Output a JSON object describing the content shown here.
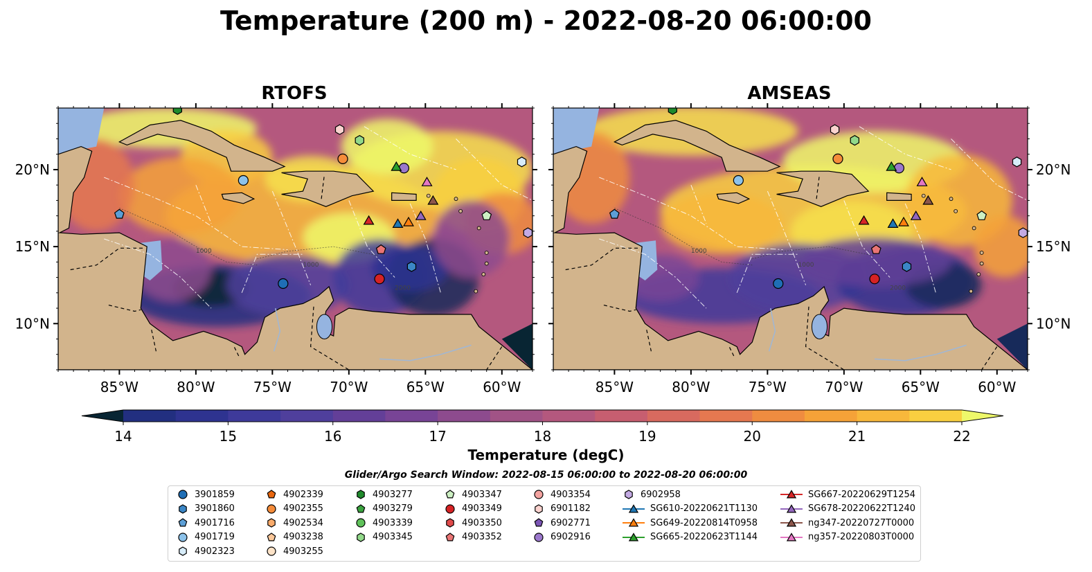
{
  "title": "Temperature (200 m) - 2022-08-20 06:00:00",
  "panels": [
    {
      "title": "RTOFS"
    },
    {
      "title": "AMSEAS"
    }
  ],
  "lon_ticks": [
    "85°W",
    "80°W",
    "75°W",
    "70°W",
    "65°W",
    "60°W"
  ],
  "lat_ticks": [
    "20°N",
    "15°N",
    "10°N"
  ],
  "colorbar": {
    "label": "Temperature (degC)",
    "ticks": [
      "14",
      "15",
      "16",
      "17",
      "18",
      "19",
      "20",
      "21",
      "22"
    ],
    "colors": [
      "#082533",
      "#172a5a",
      "#222f80",
      "#2e3390",
      "#3e3a9a",
      "#4f3f9c",
      "#633f98",
      "#784496",
      "#8d4b8e",
      "#a15386",
      "#b4587e",
      "#c75e70",
      "#d86a5f",
      "#e57850",
      "#ef8c40",
      "#f5a238",
      "#f8b83b",
      "#f9cf40",
      "#f6e04c",
      "#eef86a"
    ]
  },
  "contour_labels": [
    "1000",
    "2000",
    "1000"
  ],
  "legend": {
    "title": "Glider/Argo Search Window: 2022-08-15 06:00:00 to 2022-08-20 06:00:00",
    "items": [
      {
        "label": "3901859",
        "marker": "circle",
        "color": "#1f6eb5"
      },
      {
        "label": "3901860",
        "marker": "hexagon",
        "color": "#3b86c6"
      },
      {
        "label": "4901716",
        "marker": "pentagon",
        "color": "#5c9fd6"
      },
      {
        "label": "4901719",
        "marker": "circle",
        "color": "#8cc2ea"
      },
      {
        "label": "4902323",
        "marker": "hexagon",
        "color": "#d7ecf9"
      },
      {
        "label": "4902339",
        "marker": "pentagon",
        "color": "#e8660e"
      },
      {
        "label": "4902355",
        "marker": "circle",
        "color": "#f58c3a"
      },
      {
        "label": "4902534",
        "marker": "hexagon",
        "color": "#f9ab6b"
      },
      {
        "label": "4903238",
        "marker": "pentagon",
        "color": "#fcc89a"
      },
      {
        "label": "4903255",
        "marker": "circle",
        "color": "#fde3c8"
      },
      {
        "label": "4903277",
        "marker": "hexagon",
        "color": "#1f8a2c"
      },
      {
        "label": "4903279",
        "marker": "pentagon",
        "color": "#3ba33f"
      },
      {
        "label": "4903339",
        "marker": "circle",
        "color": "#5fc15a"
      },
      {
        "label": "4903345",
        "marker": "hexagon",
        "color": "#92d98a"
      },
      {
        "label": "4903347",
        "marker": "pentagon",
        "color": "#cdf0c3"
      },
      {
        "label": "4903349",
        "marker": "circle",
        "color": "#d62224"
      },
      {
        "label": "4903350",
        "marker": "hexagon",
        "color": "#e04a4a"
      },
      {
        "label": "4903352",
        "marker": "pentagon",
        "color": "#ea7575"
      },
      {
        "label": "4903354",
        "marker": "circle",
        "color": "#f3a3a0"
      },
      {
        "label": "6901182",
        "marker": "hexagon",
        "color": "#fbd3cf"
      },
      {
        "label": "6902771",
        "marker": "pentagon",
        "color": "#7b55b5"
      },
      {
        "label": "6902916",
        "marker": "circle",
        "color": "#9b78cc"
      },
      {
        "label": "6902958",
        "marker": "hexagon",
        "color": "#c3aae3"
      },
      {
        "label": "SG610-20220621T1130",
        "marker": "line-triangle",
        "color": "#1f77b4"
      },
      {
        "label": "SG649-20220814T0958",
        "marker": "line-triangle",
        "color": "#ff7f0e"
      },
      {
        "label": "SG665-20220623T1144",
        "marker": "line-triangle",
        "color": "#2ca02c"
      },
      {
        "label": "SG667-20220629T1254",
        "marker": "line-triangle",
        "color": "#d62728"
      },
      {
        "label": "SG678-20220622T1240",
        "marker": "line-triangle",
        "color": "#9467bd"
      },
      {
        "label": "ng347-20220727T0000",
        "marker": "line-triangle",
        "color": "#8c564b"
      },
      {
        "label": "ng357-20220803T0000",
        "marker": "line-triangle",
        "color": "#e377c2"
      }
    ]
  },
  "map_extent": {
    "lon": [
      -89,
      -58
    ],
    "lat": [
      7,
      24
    ]
  },
  "colors": {
    "land": "#d2b48c",
    "ocean": "#95b4e0"
  }
}
